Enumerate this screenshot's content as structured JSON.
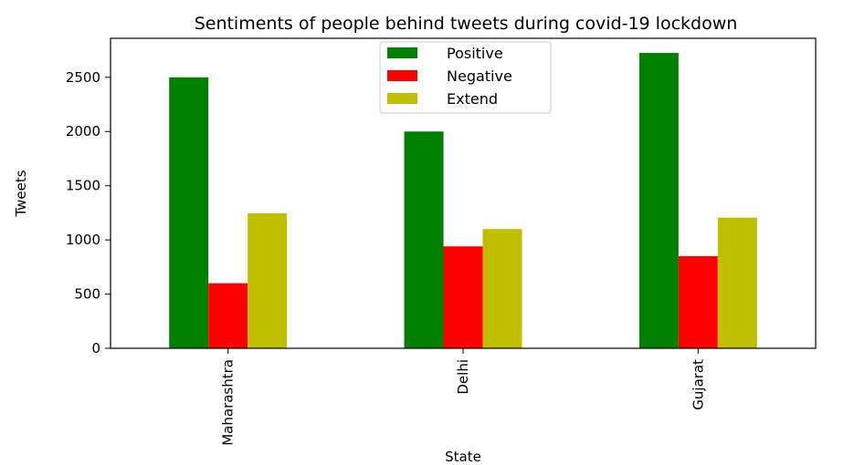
{
  "chart_data": {
    "type": "bar",
    "title": "Sentiments of people behind tweets during covid-19 lockdown",
    "xlabel": "State",
    "ylabel": "Tweets",
    "categories": [
      "Maharashtra",
      "Delhi",
      "Gujarat"
    ],
    "series": [
      {
        "name": "Positive",
        "color": "#008000",
        "values": [
          2500,
          2000,
          2725
        ]
      },
      {
        "name": "Negative",
        "color": "#ff0000",
        "values": [
          600,
          940,
          850
        ]
      },
      {
        "name": "Extend",
        "color": "#bfbf00",
        "values": [
          1245,
          1100,
          1205
        ]
      }
    ],
    "yticks": [
      0,
      500,
      1000,
      1500,
      2000,
      2500
    ],
    "ylim": [
      0,
      2860
    ],
    "legend": "top-center",
    "grid": false
  }
}
